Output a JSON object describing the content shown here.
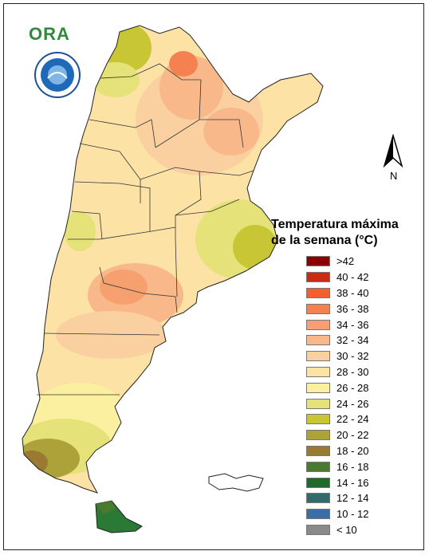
{
  "logo": {
    "text": "ORA"
  },
  "north": {
    "label": "N"
  },
  "legend": {
    "title_line1": "Temperatura máxima",
    "title_line2": "de la semana (°C)",
    "items": [
      {
        "label": ">42",
        "color": "#8b0000"
      },
      {
        "label": "40 - 42",
        "color": "#cc2a12"
      },
      {
        "label": "38 - 40",
        "color": "#f06030"
      },
      {
        "label": "36 - 38",
        "color": "#f4814f"
      },
      {
        "label": "34 - 36",
        "color": "#f6a070"
      },
      {
        "label": "32 - 34",
        "color": "#f8b88a"
      },
      {
        "label": "30 - 32",
        "color": "#fbd0a0"
      },
      {
        "label": "28 - 30",
        "color": "#fde2a6"
      },
      {
        "label": "26 - 28",
        "color": "#fbf0a0"
      },
      {
        "label": "24 - 26",
        "color": "#e6e27a"
      },
      {
        "label": "22 - 24",
        "color": "#c8c635"
      },
      {
        "label": "20 - 22",
        "color": "#ada23a"
      },
      {
        "label": "18 - 20",
        "color": "#9a7a32"
      },
      {
        "label": "16 - 18",
        "color": "#4a7a30"
      },
      {
        "label": "14 - 16",
        "color": "#1f6a2a"
      },
      {
        "label": "12 - 14",
        "color": "#2f6c6a"
      },
      {
        "label": "10 - 12",
        "color": "#3a6ea8"
      },
      {
        "label": "< 10",
        "color": "#8a8a8a"
      }
    ]
  }
}
